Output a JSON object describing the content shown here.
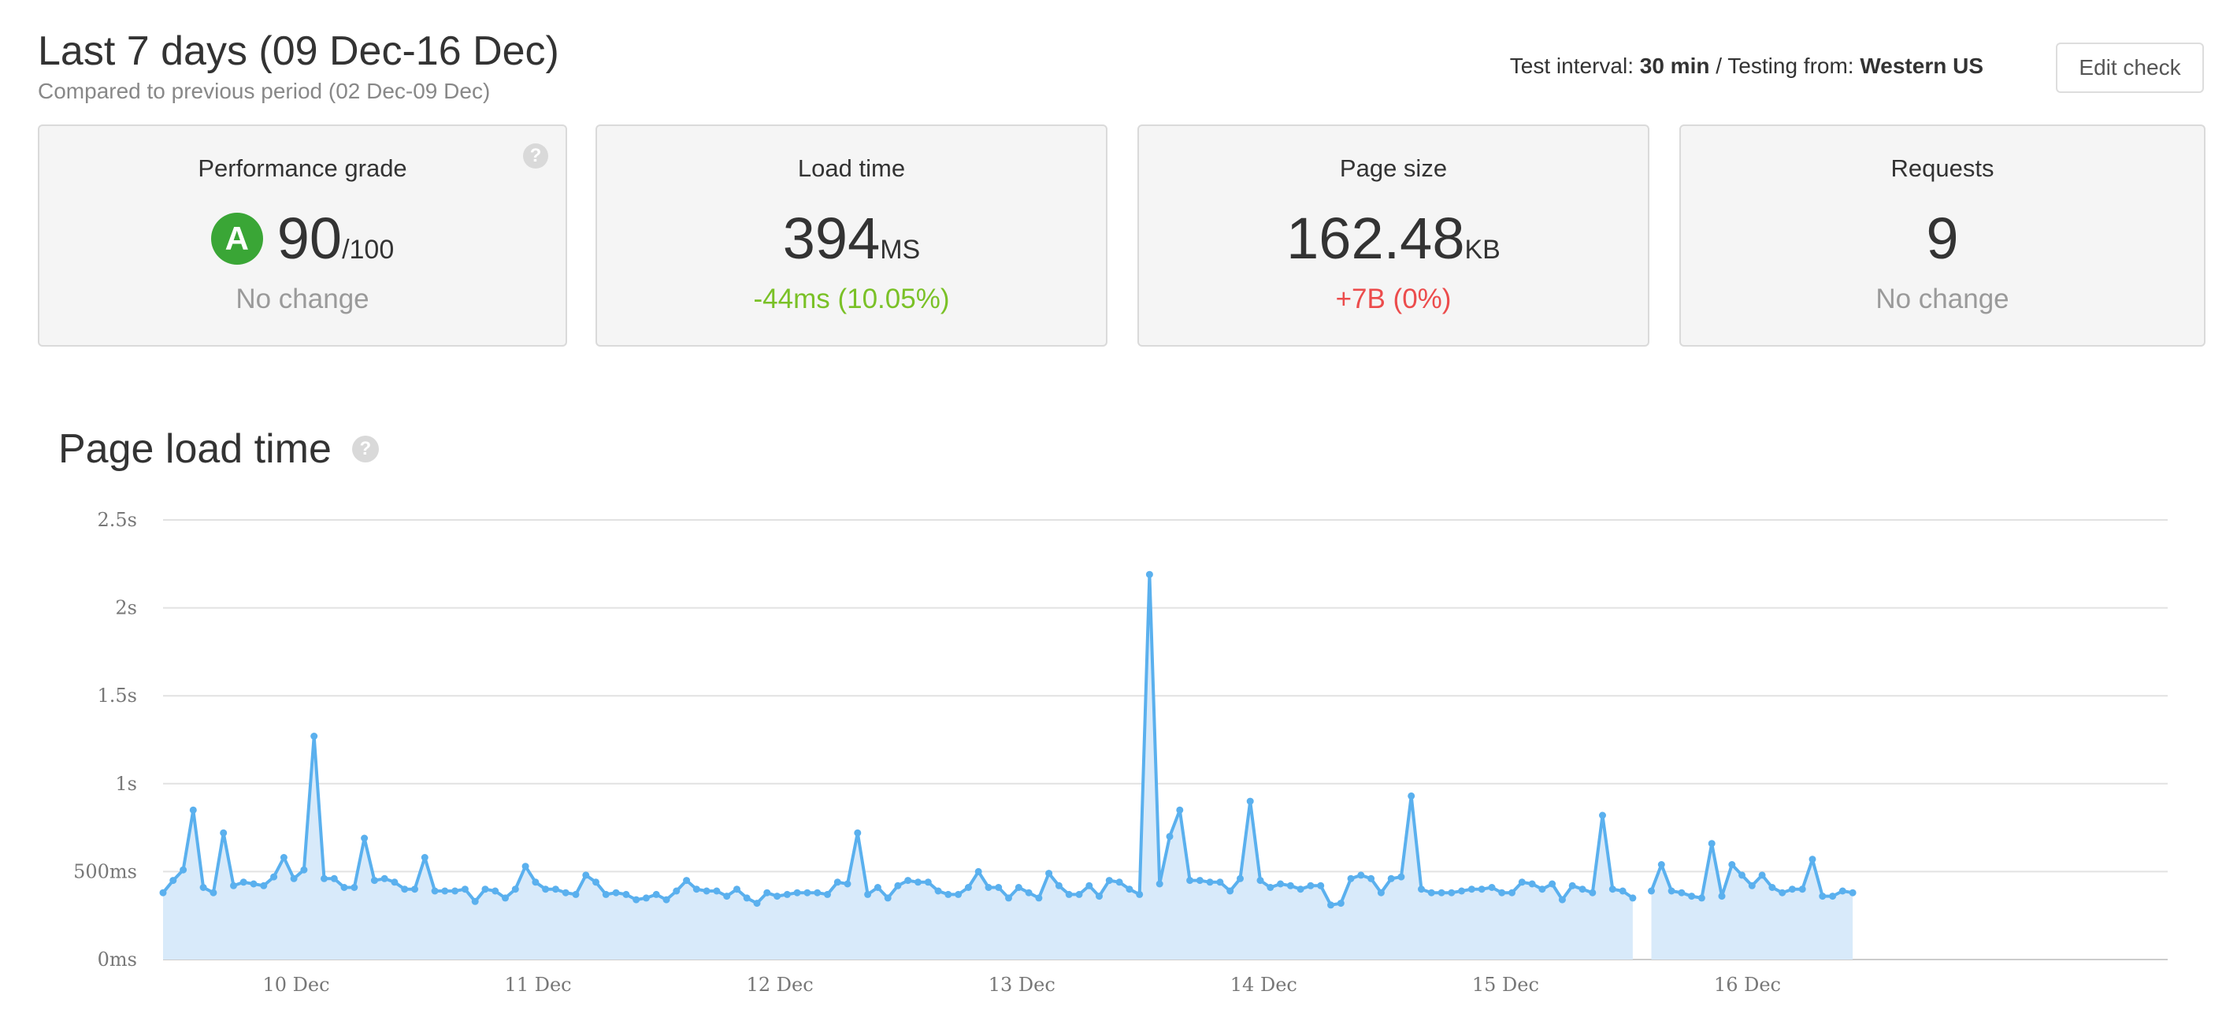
{
  "header": {
    "title": "Last 7 days (09 Dec-16 Dec)",
    "subtitle": "Compared to previous period (02 Dec-09 Dec)",
    "interval_label": "Test interval:",
    "interval_value": "30 min",
    "separator": "/",
    "location_label": "Testing from:",
    "location_value": "Western US",
    "edit_button": "Edit check"
  },
  "cards": {
    "grade": {
      "title": "Performance grade",
      "letter": "A",
      "value": "90",
      "suffix": "/100",
      "delta": "No change",
      "help": "?"
    },
    "load": {
      "title": "Load time",
      "value": "394",
      "unit": "MS",
      "delta": "-44ms (10.05%)"
    },
    "size": {
      "title": "Page size",
      "value": "162.48",
      "unit": "KB",
      "delta": "+7B (0%)"
    },
    "requests": {
      "title": "Requests",
      "value": "9",
      "delta": "No change"
    }
  },
  "colors": {
    "good": "#7ac127",
    "bad": "#ec4c4c",
    "grade": "#3aa636",
    "line": "#5ab0ee",
    "fill": "#d8eafa"
  },
  "section": {
    "title": "Page load time",
    "help": "?"
  },
  "chart_data": {
    "type": "area",
    "y_unit": "ms",
    "ylim": [
      0,
      2500
    ],
    "y_ticks": [
      {
        "value": 0,
        "label": "0ms"
      },
      {
        "value": 500,
        "label": "500ms"
      },
      {
        "value": 1000,
        "label": "1s"
      },
      {
        "value": 1500,
        "label": "1.5s"
      },
      {
        "value": 2000,
        "label": "2s"
      },
      {
        "value": 2500,
        "label": "2.5s"
      }
    ],
    "x_ticks": [
      "10 Dec",
      "11 Dec",
      "12 Dec",
      "13 Dec",
      "14 Dec",
      "15 Dec",
      "16 Dec"
    ],
    "grid": "horizontal",
    "segments": [
      {
        "start": "09 Dec 12:00",
        "interval": "1h",
        "values": [
          380,
          450,
          510,
          850,
          410,
          380,
          720,
          420,
          440,
          430,
          420,
          470,
          580,
          460,
          510,
          1270,
          460,
          460,
          410,
          410,
          690,
          450,
          460,
          440,
          400,
          400,
          580,
          390,
          390,
          390,
          400,
          330,
          400,
          390,
          350,
          400,
          530,
          440,
          400,
          400,
          380,
          370,
          480,
          440,
          370,
          380,
          370,
          340,
          350,
          370,
          340,
          390,
          450,
          400,
          390,
          390,
          360,
          400,
          350,
          320,
          380,
          360,
          370,
          380,
          380,
          380,
          370,
          440,
          430,
          720,
          370,
          410,
          350,
          420,
          450,
          440,
          440,
          390,
          370,
          370,
          410,
          500,
          410,
          410,
          350,
          410,
          380,
          350,
          490,
          420,
          370,
          370,
          420,
          360,
          450,
          440,
          400,
          370,
          2190,
          430,
          700,
          850,
          450,
          450,
          440,
          440,
          390,
          460,
          900,
          450,
          410,
          430,
          420,
          400,
          420,
          420,
          310,
          320,
          460,
          480,
          460,
          380,
          460,
          470,
          930,
          400,
          380,
          380,
          380,
          390,
          400,
          400,
          410,
          380,
          380,
          440,
          430,
          400,
          430,
          340,
          420,
          400,
          380,
          820,
          400,
          390,
          350
        ]
      },
      {
        "start": "15 Dec 18:00",
        "interval": "1h",
        "values": [
          390,
          540,
          390,
          380,
          360,
          350,
          660,
          360,
          540,
          480,
          420,
          480,
          410,
          380,
          400,
          400,
          570,
          360,
          360,
          390,
          380
        ]
      }
    ]
  }
}
